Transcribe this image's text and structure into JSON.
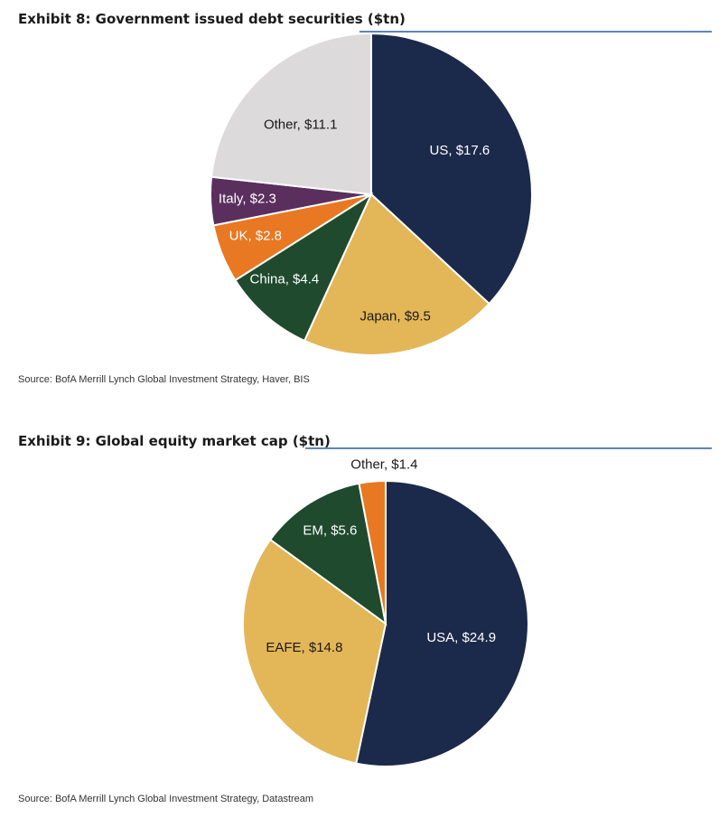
{
  "exhibits": [
    {
      "title": "Exhibit 8: Government issued debt securities ($tn)",
      "source": "Source:  BofA Merrill Lynch Global Investment Strategy, Haver, BIS"
    },
    {
      "title": "Exhibit 9: Global equity market cap ($tn)",
      "source": "Source:  BofA Merrill Lynch Global Investment Strategy, Datastream"
    }
  ],
  "chart_data": [
    {
      "type": "pie",
      "title": "Exhibit 8: Government issued debt securities ($tn)",
      "start": "12 o'clock, clockwise",
      "slices": [
        {
          "name": "US",
          "value": 17.6,
          "label": "US, $17.6",
          "color": "#1b2a4a",
          "text_color": "#ffffff"
        },
        {
          "name": "Japan",
          "value": 9.5,
          "label": "Japan, $9.5",
          "color": "#e3b657",
          "text_color": "#1a1a1a"
        },
        {
          "name": "China",
          "value": 4.4,
          "label": "China, $4.4",
          "color": "#1f4a2e",
          "text_color": "#ffffff"
        },
        {
          "name": "UK",
          "value": 2.8,
          "label": "UK, $2.8",
          "color": "#e87822",
          "text_color": "#ffffff"
        },
        {
          "name": "Italy",
          "value": 2.3,
          "label": "Italy, $2.3",
          "color": "#5a2f5e",
          "text_color": "#ffffff"
        },
        {
          "name": "Other",
          "value": 11.1,
          "label": "Other, $11.1",
          "color": "#dcdadb",
          "text_color": "#1a1a1a"
        }
      ]
    },
    {
      "type": "pie",
      "title": "Exhibit 9: Global equity market cap ($tn)",
      "start": "12 o'clock, clockwise",
      "slices": [
        {
          "name": "USA",
          "value": 24.9,
          "label": "USA, $24.9",
          "color": "#1b2a4a",
          "text_color": "#ffffff"
        },
        {
          "name": "EAFE",
          "value": 14.8,
          "label": "EAFE, $14.8",
          "color": "#e3b657",
          "text_color": "#1a1a1a"
        },
        {
          "name": "EM",
          "value": 5.6,
          "label": "EM, $5.6",
          "color": "#1f4a2e",
          "text_color": "#ffffff"
        },
        {
          "name": "Other",
          "value": 1.4,
          "label": "Other, $1.4",
          "color": "#e87822",
          "text_color": "#1a1a1a"
        }
      ]
    }
  ]
}
